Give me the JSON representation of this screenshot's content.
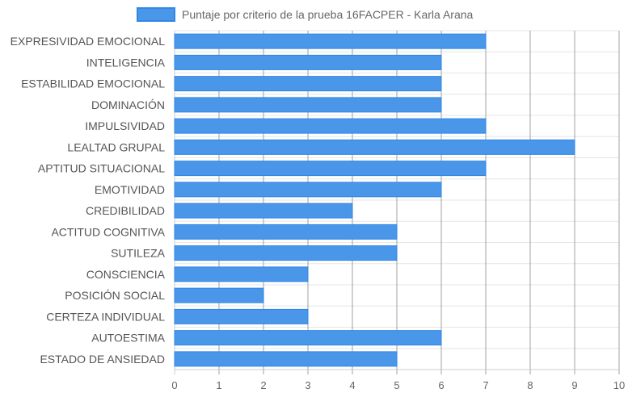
{
  "chart_data": {
    "type": "bar",
    "orientation": "horizontal",
    "legend": {
      "label": "Puntaje por criterio de la prueba 16FACPER - Karla Arana",
      "placement": "top"
    },
    "categories": [
      "EXPRESIVIDAD EMOCIONAL",
      "INTELIGENCIA",
      "ESTABILIDAD EMOCIONAL",
      "DOMINACIÓN",
      "IMPULSIVIDAD",
      "LEALTAD GRUPAL",
      "APTITUD SITUACIONAL",
      "EMOTIVIDAD",
      "CREDIBILIDAD",
      "ACTITUD COGNITIVA",
      "SUTILEZA",
      "CONSCIENCIA",
      "POSICIÓN SOCIAL",
      "CERTEZA INDIVIDUAL",
      "AUTOESTIMA",
      "ESTADO DE ANSIEDAD"
    ],
    "series": [
      {
        "name": "Puntaje por criterio de la prueba 16FACPER - Karla Arana",
        "values": [
          7,
          6,
          6,
          6,
          7,
          9,
          7,
          6,
          4,
          5,
          5,
          3,
          2,
          3,
          6,
          5
        ],
        "color": "#4a97ea",
        "border_color": "#2f86e4"
      }
    ],
    "x_ticks": [
      "0",
      "1",
      "2",
      "3",
      "4",
      "5",
      "6",
      "7",
      "8",
      "9",
      "10"
    ],
    "xlim": [
      0,
      10
    ],
    "grid": true
  }
}
